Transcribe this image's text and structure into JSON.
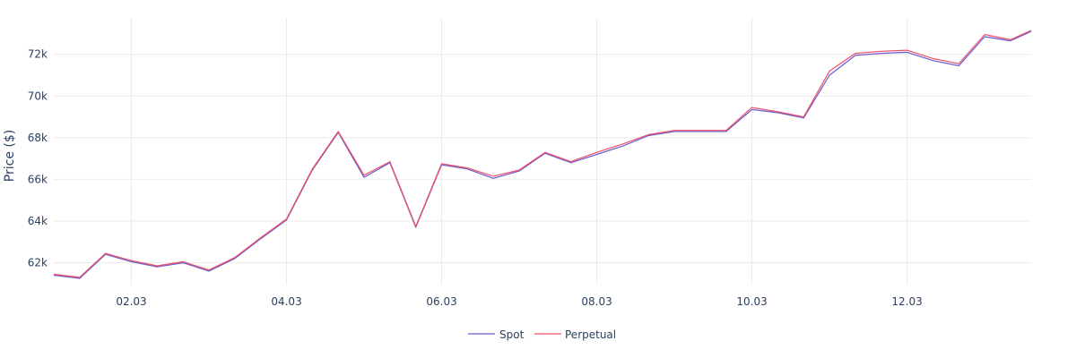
{
  "chart_data": {
    "type": "line",
    "ylabel": "Price ($)",
    "xlim": [
      0.0,
      12.6
    ],
    "ylim": [
      60950,
      73750
    ],
    "x_ticks": [
      {
        "x": 1,
        "label": "02.03"
      },
      {
        "x": 3,
        "label": "04.03"
      },
      {
        "x": 5,
        "label": "06.03"
      },
      {
        "x": 7,
        "label": "08.03"
      },
      {
        "x": 9,
        "label": "10.03"
      },
      {
        "x": 11,
        "label": "12.03"
      }
    ],
    "y_ticks": [
      {
        "y": 62000,
        "label": "62k"
      },
      {
        "y": 64000,
        "label": "64k"
      },
      {
        "y": 66000,
        "label": "66k"
      },
      {
        "y": 68000,
        "label": "68k"
      },
      {
        "y": 70000,
        "label": "70k"
      },
      {
        "y": 72000,
        "label": "72k"
      }
    ],
    "legend_position": "bottom-center",
    "grid": true,
    "x": [
      0,
      0.333,
      0.667,
      1.0,
      1.333,
      1.667,
      2.0,
      2.333,
      2.667,
      3.0,
      3.333,
      3.667,
      4.0,
      4.333,
      4.667,
      5.0,
      5.333,
      5.667,
      6.0,
      6.333,
      6.667,
      7.0,
      7.333,
      7.667,
      8.0,
      8.333,
      8.667,
      9.0,
      9.333,
      9.667,
      10.0,
      10.333,
      10.667,
      11.0,
      11.333,
      11.667,
      12.0,
      12.333,
      12.6
    ],
    "series": [
      {
        "name": "Spot",
        "color": "#6a5acd",
        "values": [
          61400,
          61250,
          62400,
          62050,
          61800,
          62000,
          61600,
          62200,
          63150,
          64050,
          66450,
          68250,
          66100,
          66800,
          63700,
          66700,
          66500,
          66050,
          66400,
          67250,
          66800,
          67200,
          67600,
          68100,
          68300,
          68300,
          68300,
          69350,
          69200,
          68950,
          71000,
          71950,
          72050,
          72100,
          71700,
          71450,
          72850,
          72650,
          73100
        ]
      },
      {
        "name": "Perpetual",
        "color": "#f05068",
        "values": [
          61450,
          61300,
          62450,
          62100,
          61850,
          62050,
          61650,
          62250,
          63200,
          64100,
          66500,
          68300,
          66200,
          66850,
          63750,
          66750,
          66550,
          66150,
          66450,
          67300,
          66850,
          67300,
          67700,
          68150,
          68350,
          68350,
          68350,
          69450,
          69250,
          69000,
          71200,
          72050,
          72150,
          72200,
          71800,
          71550,
          72950,
          72700,
          73150
        ]
      }
    ]
  }
}
